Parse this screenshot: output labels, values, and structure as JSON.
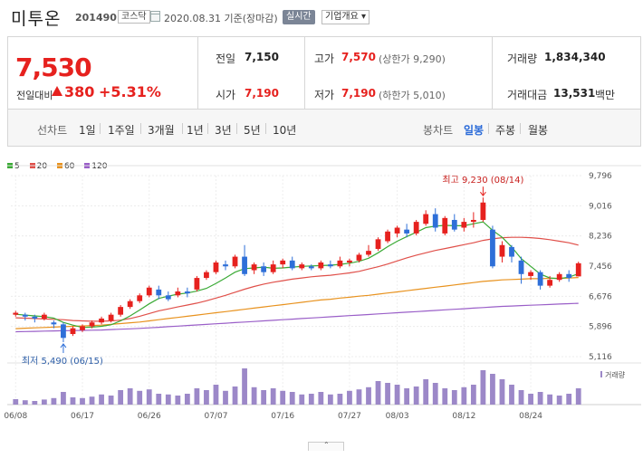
{
  "header": {
    "stock_name": "미투온",
    "stock_code": "201490",
    "market": "코스닥",
    "date_text": "2020.08.31 기준(장마감)",
    "realtime_label": "실시간",
    "info_label": "기업개요 ▾"
  },
  "summary": {
    "current_price": "7,530",
    "change_label": "전일대비",
    "change_value": "380",
    "change_pct": "+5.31%",
    "prev_close_label": "전일",
    "prev_close": "7,150",
    "open_label": "시가",
    "open": "7,190",
    "high_label": "고가",
    "high": "7,570",
    "upper_limit": "(상한가 9,290)",
    "low_label": "저가",
    "low": "7,190",
    "lower_limit": "(하한가 5,010)",
    "volume_label": "거래량",
    "volume": "1,834,340",
    "amount_label": "거래대금",
    "amount": "13,531",
    "amount_unit": "백만"
  },
  "tabs": {
    "line_label": "선차트",
    "periods": [
      "1일",
      "1주일",
      "3개월",
      "1년",
      "3년",
      "5년",
      "10년"
    ],
    "candle_label": "봉차트",
    "candles": [
      "일봉",
      "주봉",
      "월봉"
    ],
    "selected_candle": "일봉"
  },
  "colors": {
    "up": "#e6211e",
    "down": "#2e6fd8",
    "ma5": "#3aaa35",
    "ma20": "#e0504a",
    "ma60": "#e8921e",
    "ma120": "#9a5fc8",
    "volume": "#9c88c8"
  },
  "chart_data": {
    "type": "candlestick",
    "legend": [
      "5",
      "20",
      "60",
      "120"
    ],
    "y_ticks": [
      "9,796",
      "9,016",
      "8,236",
      "7,456",
      "6,676",
      "5,896",
      "5,116"
    ],
    "y_tick_values": [
      9796,
      9016,
      8236,
      7456,
      6676,
      5896,
      5116
    ],
    "ylim": [
      5116,
      9796
    ],
    "x_ticks": [
      "06/08",
      "06/17",
      "06/26",
      "07/07",
      "07/16",
      "07/27",
      "08/03",
      "08/12",
      "08/24"
    ],
    "x_tick_index": [
      0,
      7,
      14,
      21,
      28,
      35,
      40,
      47,
      54
    ],
    "high_annotation": "최고 9,230 (08/14)",
    "low_annotation": "최저 5,490 (06/15)",
    "volume_legend": "거래량",
    "candles": [
      [
        6200,
        6250,
        6150,
        6300
      ],
      [
        6200,
        6150,
        6050,
        6250
      ],
      [
        6150,
        6100,
        6000,
        6200
      ],
      [
        6100,
        6200,
        6050,
        6250
      ],
      [
        6000,
        5950,
        5850,
        6050
      ],
      [
        5950,
        5600,
        5490,
        6000
      ],
      [
        5700,
        5850,
        5650,
        5900
      ],
      [
        5800,
        5900,
        5750,
        5950
      ],
      [
        5900,
        6000,
        5850,
        6050
      ],
      [
        6000,
        6100,
        5950,
        6150
      ],
      [
        6050,
        6200,
        6000,
        6250
      ],
      [
        6200,
        6400,
        6150,
        6450
      ],
      [
        6400,
        6550,
        6350,
        6600
      ],
      [
        6550,
        6700,
        6500,
        6750
      ],
      [
        6700,
        6900,
        6650,
        6950
      ],
      [
        6850,
        6700,
        6600,
        6950
      ],
      [
        6700,
        6600,
        6550,
        6800
      ],
      [
        6700,
        6800,
        6650,
        6900
      ],
      [
        6800,
        6750,
        6650,
        6900
      ],
      [
        6850,
        7150,
        6800,
        7200
      ],
      [
        7150,
        7300,
        7100,
        7350
      ],
      [
        7300,
        7550,
        7250,
        7600
      ],
      [
        7500,
        7450,
        7350,
        7600
      ],
      [
        7450,
        7700,
        7400,
        7750
      ],
      [
        7700,
        7250,
        7200,
        8000
      ],
      [
        7350,
        7500,
        7250,
        7550
      ],
      [
        7450,
        7300,
        7200,
        7550
      ],
      [
        7300,
        7500,
        7250,
        7600
      ],
      [
        7500,
        7600,
        7400,
        7650
      ],
      [
        7600,
        7400,
        7350,
        7700
      ],
      [
        7400,
        7500,
        7350,
        7550
      ],
      [
        7450,
        7400,
        7350,
        7500
      ],
      [
        7400,
        7550,
        7350,
        7600
      ],
      [
        7500,
        7450,
        7400,
        7600
      ],
      [
        7450,
        7600,
        7400,
        7700
      ],
      [
        7550,
        7600,
        7450,
        7650
      ],
      [
        7600,
        7750,
        7550,
        7800
      ],
      [
        7750,
        7850,
        7700,
        8000
      ],
      [
        7900,
        8150,
        7850,
        8200
      ],
      [
        8100,
        8350,
        8050,
        8400
      ],
      [
        8300,
        8450,
        8200,
        8500
      ],
      [
        8400,
        8300,
        8200,
        8550
      ],
      [
        8300,
        8600,
        8250,
        8650
      ],
      [
        8550,
        8800,
        8500,
        8900
      ],
      [
        8800,
        8450,
        8350,
        8950
      ],
      [
        8300,
        8700,
        8250,
        8750
      ],
      [
        8650,
        8400,
        8350,
        8800
      ],
      [
        8450,
        8600,
        8350,
        8700
      ],
      [
        8600,
        8650,
        8450,
        8850
      ],
      [
        8650,
        9100,
        8600,
        9230
      ],
      [
        8400,
        7450,
        7400,
        8500
      ],
      [
        7700,
        8000,
        7550,
        8100
      ],
      [
        7950,
        7700,
        7550,
        8000
      ],
      [
        7600,
        7250,
        7000,
        7700
      ],
      [
        7200,
        7300,
        7100,
        7350
      ],
      [
        7300,
        6950,
        6850,
        7350
      ],
      [
        6950,
        7100,
        6900,
        7200
      ],
      [
        7100,
        7250,
        7050,
        7300
      ],
      [
        7250,
        7150,
        7050,
        7350
      ],
      [
        7190,
        7530,
        7190,
        7570
      ]
    ],
    "ma5": [
      6210,
      6190,
      6170,
      6150,
      6110,
      6000,
      5930,
      5870,
      5880,
      5900,
      5940,
      6040,
      6170,
      6320,
      6480,
      6620,
      6680,
      6730,
      6760,
      6810,
      6880,
      7010,
      7150,
      7300,
      7390,
      7410,
      7430,
      7400,
      7410,
      7430,
      7450,
      7460,
      7470,
      7480,
      7500,
      7530,
      7580,
      7660,
      7800,
      7960,
      8100,
      8220,
      8330,
      8450,
      8490,
      8510,
      8500,
      8500,
      8550,
      8600,
      8380,
      8200,
      7950,
      7650,
      7450,
      7250,
      7150,
      7130,
      7170,
      7260
    ],
    "ma20": [
      6120,
      6110,
      6100,
      6090,
      6080,
      6070,
      6050,
      6040,
      6030,
      6030,
      6040,
      6060,
      6100,
      6160,
      6230,
      6300,
      6350,
      6400,
      6450,
      6500,
      6560,
      6630,
      6700,
      6780,
      6860,
      6930,
      6990,
      7040,
      7080,
      7120,
      7150,
      7180,
      7200,
      7220,
      7250,
      7280,
      7320,
      7380,
      7440,
      7510,
      7590,
      7670,
      7740,
      7800,
      7860,
      7910,
      7960,
      8010,
      8060,
      8120,
      8160,
      8190,
      8200,
      8200,
      8190,
      8170,
      8140,
      8100,
      8060,
      8000
    ],
    "ma60": [
      5840,
      5850,
      5860,
      5870,
      5880,
      5890,
      5900,
      5910,
      5920,
      5930,
      5950,
      5970,
      5990,
      6010,
      6040,
      6070,
      6100,
      6130,
      6160,
      6190,
      6220,
      6250,
      6280,
      6310,
      6340,
      6370,
      6400,
      6430,
      6460,
      6490,
      6520,
      6550,
      6580,
      6600,
      6630,
      6650,
      6680,
      6700,
      6730,
      6760,
      6790,
      6820,
      6850,
      6880,
      6910,
      6940,
      6970,
      7000,
      7030,
      7060,
      7080,
      7100,
      7110,
      7120,
      7130,
      7130,
      7140,
      7140,
      7150,
      7160
    ],
    "ma120": [
      5760,
      5765,
      5770,
      5775,
      5780,
      5785,
      5790,
      5795,
      5800,
      5805,
      5815,
      5825,
      5835,
      5845,
      5860,
      5875,
      5890,
      5905,
      5920,
      5935,
      5950,
      5965,
      5980,
      5995,
      6010,
      6025,
      6040,
      6055,
      6070,
      6085,
      6100,
      6115,
      6130,
      6145,
      6160,
      6175,
      6190,
      6205,
      6220,
      6235,
      6250,
      6265,
      6280,
      6295,
      6310,
      6325,
      6340,
      6355,
      6370,
      6385,
      6400,
      6415,
      6425,
      6435,
      6445,
      6455,
      6465,
      6475,
      6485,
      6495
    ],
    "volumes": [
      15,
      12,
      10,
      14,
      18,
      35,
      20,
      18,
      22,
      28,
      25,
      40,
      45,
      38,
      42,
      30,
      28,
      25,
      30,
      45,
      40,
      55,
      38,
      50,
      100,
      48,
      40,
      45,
      38,
      35,
      28,
      30,
      35,
      28,
      30,
      38,
      42,
      48,
      65,
      60,
      55,
      45,
      50,
      70,
      60,
      45,
      40,
      48,
      55,
      95,
      85,
      70,
      55,
      40,
      30,
      35,
      28,
      25,
      30,
      45
    ]
  }
}
